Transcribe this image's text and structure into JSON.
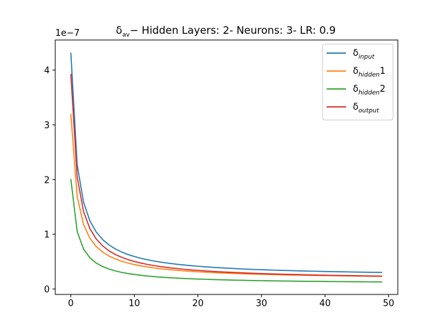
{
  "chart_data": {
    "type": "line",
    "title": {
      "symbol": "δ",
      "symbol_sub": "av",
      "text": "− Hidden Layers: 2- Neurons: 3- LR: 0.9"
    },
    "offset_label": "1e−7",
    "xlabel": "",
    "ylabel": "",
    "xlim": [
      -2.45,
      51.45
    ],
    "ylim": [
      -0.1,
      4.55
    ],
    "y_scale_factor": 1e-07,
    "x_ticks": [
      0,
      10,
      20,
      30,
      40,
      50
    ],
    "y_ticks": [
      0,
      1,
      2,
      3,
      4
    ],
    "grid": false,
    "legend_position": "top-right",
    "x_range": [
      0,
      49
    ],
    "curve_model": "y = a / (x + 1) + c",
    "series": [
      {
        "name": "δ",
        "sub": "input",
        "suffix": "",
        "color": "#1f77b4",
        "a": 4.1,
        "c": 0.22
      },
      {
        "name": "δ",
        "sub": "hidden",
        "suffix": "1",
        "color": "#ff7f0e",
        "a": 3.03,
        "c": 0.17
      },
      {
        "name": "δ",
        "sub": "hidden",
        "suffix": "2",
        "color": "#2ca02c",
        "a": 1.92,
        "c": 0.09
      },
      {
        "name": "δ",
        "sub": "output",
        "suffix": "",
        "color": "#d62728",
        "a": 3.77,
        "c": 0.16
      }
    ]
  }
}
